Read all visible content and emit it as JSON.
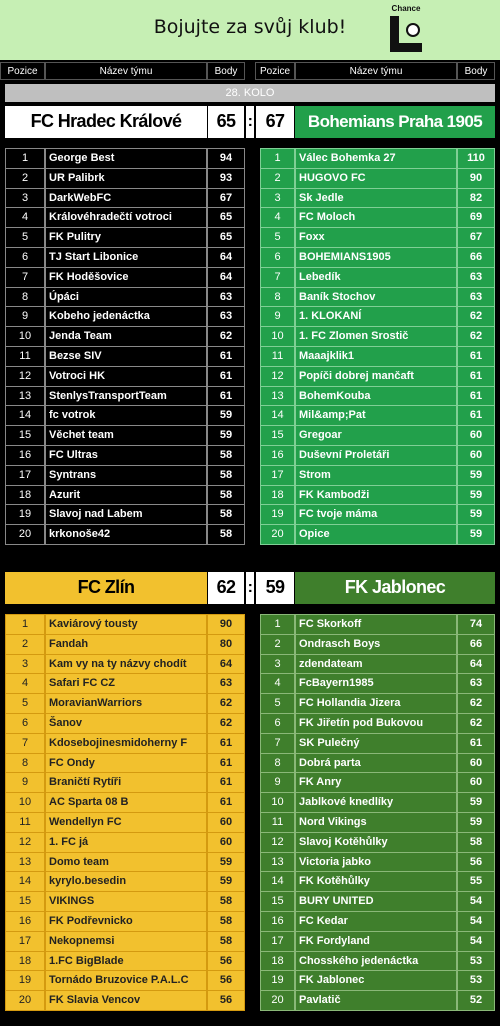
{
  "header": {
    "title": "Bojujte za svůj klub!",
    "logo": "Chance"
  },
  "columns": [
    "Pozice",
    "Název týmu",
    "Body",
    "Pozice",
    "Název týmu",
    "Body"
  ],
  "round": "28. KOLO",
  "matches": [
    {
      "home": {
        "name": "FC Hradec Králové",
        "score": 65,
        "rows": [
          [
            1,
            "George Best",
            94
          ],
          [
            2,
            "UR Palibrk",
            93
          ],
          [
            3,
            "DarkWebFC",
            67
          ],
          [
            4,
            "Královéhradečtí votroci",
            65
          ],
          [
            5,
            "FK Pulitry",
            65
          ],
          [
            6,
            "TJ Start Libonice",
            64
          ],
          [
            7,
            "FK Hoděšovice",
            64
          ],
          [
            8,
            "Úpáci",
            63
          ],
          [
            9,
            "Kobeho jedenáctka",
            63
          ],
          [
            10,
            "Jenda Team",
            62
          ],
          [
            11,
            "Bezse SIV",
            61
          ],
          [
            12,
            "Votroci HK",
            61
          ],
          [
            13,
            "StenlysTransportTeam",
            61
          ],
          [
            14,
            "fc votrok",
            59
          ],
          [
            15,
            "Věchet team",
            59
          ],
          [
            16,
            "FC Ultras",
            58
          ],
          [
            17,
            "Syntrans",
            58
          ],
          [
            18,
            "Azurit",
            58
          ],
          [
            19,
            "Slavoj nad Labem",
            58
          ],
          [
            20,
            "krkonoše42",
            58
          ]
        ]
      },
      "separator": ":",
      "away": {
        "name": "Bohemians Praha 1905",
        "score": 67,
        "rows": [
          [
            1,
            "Válec Bohemka 27",
            110
          ],
          [
            2,
            "HUGOVO FC",
            90
          ],
          [
            3,
            "Sk Jedle",
            82
          ],
          [
            4,
            "FC Moloch",
            69
          ],
          [
            5,
            "Foxx",
            67
          ],
          [
            6,
            "BOHEMIANS1905",
            66
          ],
          [
            7,
            "Lebedík",
            63
          ],
          [
            8,
            "Baník Stochov",
            63
          ],
          [
            9,
            "1. KLOKANÍ",
            62
          ],
          [
            10,
            "1. FC Zlomen Srostič",
            62
          ],
          [
            11,
            "Maaajklik1",
            61
          ],
          [
            12,
            "Popíči dobrej mančaft",
            61
          ],
          [
            13,
            "BohemKouba",
            61
          ],
          [
            14,
            "Mil&amp;Pat",
            61
          ],
          [
            15,
            "Gregoar",
            60
          ],
          [
            16,
            "Duševní Proletáři",
            60
          ],
          [
            17,
            "Strom",
            59
          ],
          [
            18,
            "FK Kambodži",
            59
          ],
          [
            19,
            "FC tvoje máma",
            59
          ],
          [
            20,
            "Opice",
            59
          ]
        ]
      }
    },
    {
      "home": {
        "name": "FC Zlín",
        "score": 62,
        "rows": [
          [
            1,
            "Kaviárový tousty",
            90
          ],
          [
            2,
            "Fandah",
            80
          ],
          [
            3,
            "Kam vy na ty názvy chodít",
            64
          ],
          [
            4,
            "Safari FC CZ",
            63
          ],
          [
            5,
            "MoravianWarriors",
            62
          ],
          [
            6,
            "Šanov",
            62
          ],
          [
            7,
            "Kdosebojinesmidoherny F",
            61
          ],
          [
            8,
            "FC Ondy",
            61
          ],
          [
            9,
            "Braničtí Rytíři",
            61
          ],
          [
            10,
            "AC Sparta 08 B",
            61
          ],
          [
            11,
            "Wendellyn FC",
            60
          ],
          [
            12,
            "1. FC já",
            60
          ],
          [
            13,
            "Domo team",
            59
          ],
          [
            14,
            "kyrylo.besedin",
            59
          ],
          [
            15,
            "VIKINGS",
            58
          ],
          [
            16,
            "FK Podřevnicko",
            58
          ],
          [
            17,
            "Nekopnemsi",
            58
          ],
          [
            18,
            "1.FC BigBlade",
            56
          ],
          [
            19,
            "Tornádo Bruzovice P.A.L.C",
            56
          ],
          [
            20,
            "FK Slavia Vencov",
            56
          ]
        ]
      },
      "separator": ":",
      "away": {
        "name": "FK Jablonec",
        "score": 59,
        "rows": [
          [
            1,
            "FC Skorkoff",
            74
          ],
          [
            2,
            "Ondrasch Boys",
            66
          ],
          [
            3,
            "zdendateam",
            64
          ],
          [
            4,
            "FcBayern1985",
            63
          ],
          [
            5,
            "FC Hollandia Jizera",
            62
          ],
          [
            6,
            "FK Jiřetín pod Bukovou",
            62
          ],
          [
            7,
            "SK Pulečný",
            61
          ],
          [
            8,
            "Dobrá parta",
            60
          ],
          [
            9,
            "FK Anry",
            60
          ],
          [
            10,
            "Jablkové knedlíky",
            59
          ],
          [
            11,
            "Nord Vikings",
            59
          ],
          [
            12,
            "Slavoj Kotěhůlky",
            58
          ],
          [
            13,
            "Victoria jabko",
            56
          ],
          [
            14,
            "FK Kotěhůlky",
            55
          ],
          [
            15,
            "BURY UNITED",
            54
          ],
          [
            16,
            "FC Kedar",
            54
          ],
          [
            17,
            "FK Fordyland",
            54
          ],
          [
            18,
            "Chosského jedenáctka",
            53
          ],
          [
            19,
            "FK Jablonec",
            53
          ],
          [
            20,
            "Pavlatič",
            52
          ]
        ]
      }
    }
  ]
}
